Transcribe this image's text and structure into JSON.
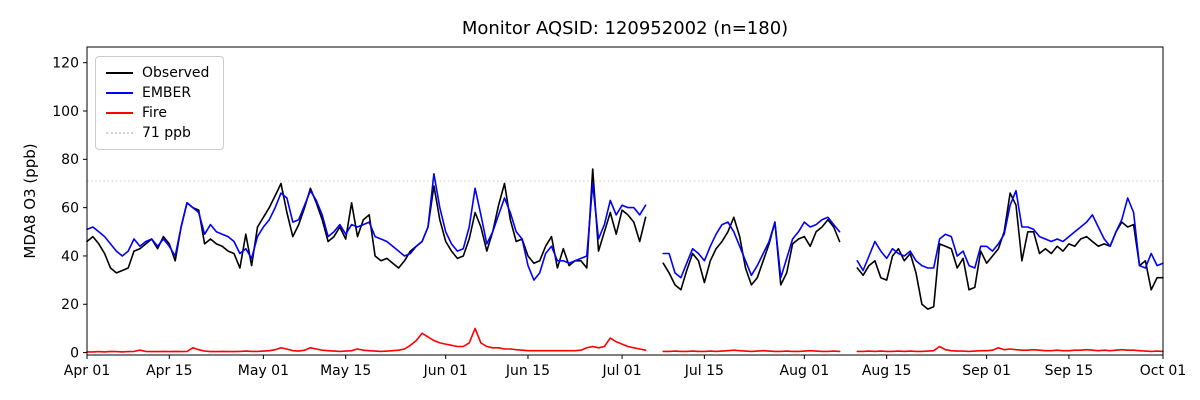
{
  "chart_data": {
    "type": "line",
    "title": "Monitor AQSID: 120952002 (n=180)",
    "ylabel": "MDA8 O3 (ppb)",
    "n_points": 180,
    "x_range_days": [
      0,
      183
    ],
    "x_ticks": [
      {
        "day": 0,
        "label": "Apr 01"
      },
      {
        "day": 14,
        "label": "Apr 15"
      },
      {
        "day": 30,
        "label": "May 01"
      },
      {
        "day": 44,
        "label": "May 15"
      },
      {
        "day": 61,
        "label": "Jun 01"
      },
      {
        "day": 75,
        "label": "Jun 15"
      },
      {
        "day": 91,
        "label": "Jul 01"
      },
      {
        "day": 105,
        "label": "Jul 15"
      },
      {
        "day": 122,
        "label": "Aug 01"
      },
      {
        "day": 136,
        "label": "Aug 15"
      },
      {
        "day": 153,
        "label": "Sep 01"
      },
      {
        "day": 167,
        "label": "Sep 15"
      },
      {
        "day": 183,
        "label": "Oct 01"
      }
    ],
    "y_ticks": [
      0,
      20,
      40,
      60,
      80,
      100,
      120
    ],
    "ylim": [
      -1,
      126.5
    ],
    "grid": false,
    "reference_line": {
      "value": 71,
      "label": "71 ppb",
      "color": "#d3d3d3",
      "style": "dotted"
    },
    "legend": {
      "position": "upper-left",
      "entries": [
        {
          "label": "Observed",
          "color": "#000000",
          "style": "solid"
        },
        {
          "label": "EMBER",
          "color": "#0000ff",
          "style": "solid"
        },
        {
          "label": "Fire",
          "color": "#ff0000",
          "style": "solid"
        },
        {
          "label": "71 ppb",
          "color": "#d3d3d3",
          "style": "dotted"
        }
      ]
    },
    "day_segments": [
      [
        0,
        95
      ],
      [
        98,
        128
      ],
      [
        131,
        183
      ]
    ],
    "series": [
      {
        "name": "Observed",
        "color": "#000000",
        "values": [
          46,
          48,
          45,
          41,
          35,
          33,
          34,
          35,
          42,
          43,
          45,
          47,
          43,
          48,
          45,
          38,
          52,
          62,
          60,
          59,
          45,
          47,
          45,
          44,
          42,
          41,
          35,
          49,
          36,
          52,
          56,
          60,
          65,
          70,
          58,
          48,
          53,
          60,
          68,
          62,
          55,
          46,
          48,
          52,
          47,
          62,
          48,
          55,
          57,
          40,
          38,
          39,
          37,
          35,
          38,
          42,
          44,
          46,
          52,
          69,
          55,
          46,
          42,
          39,
          40,
          47,
          58,
          52,
          42,
          50,
          61,
          70,
          55,
          46,
          47,
          40,
          37,
          38,
          44,
          48,
          35,
          43,
          36,
          38,
          38,
          35,
          76,
          42,
          50,
          58,
          49,
          59,
          57,
          54,
          46,
          56,
          37,
          33,
          28,
          26,
          34,
          41,
          38,
          29,
          38,
          43,
          46,
          50,
          56,
          48,
          35,
          28,
          31,
          38,
          45,
          54,
          28,
          33,
          45,
          47,
          48,
          44,
          50,
          52,
          55,
          52,
          46,
          35,
          32,
          36,
          38,
          31,
          30,
          40,
          43,
          38,
          41,
          33,
          20,
          18,
          19,
          45,
          44,
          43,
          35,
          39,
          26,
          27,
          42,
          37,
          40,
          43,
          50,
          66,
          61,
          38,
          50,
          50,
          41,
          43,
          41,
          44,
          42,
          45,
          44,
          47,
          48,
          46,
          44,
          45,
          44,
          50,
          54,
          52,
          53,
          36,
          38,
          26,
          31,
          31
        ]
      },
      {
        "name": "EMBER",
        "color": "#0000ff",
        "values": [
          51,
          52,
          50,
          48,
          45,
          42,
          40,
          42,
          47,
          44,
          46,
          47,
          44,
          47,
          44,
          40,
          52,
          62,
          60,
          58,
          49,
          53,
          50,
          49,
          48,
          46,
          41,
          43,
          39,
          48,
          52,
          55,
          60,
          66,
          64,
          54,
          55,
          61,
          67,
          63,
          57,
          48,
          50,
          53,
          49,
          53,
          52,
          53,
          54,
          48,
          47,
          46,
          44,
          42,
          40,
          41,
          44,
          46,
          52,
          74,
          60,
          50,
          45,
          42,
          43,
          52,
          68,
          57,
          45,
          50,
          57,
          64,
          58,
          50,
          47,
          36,
          30,
          33,
          41,
          44,
          38,
          38,
          37,
          38,
          39,
          40,
          70,
          47,
          53,
          63,
          57,
          61,
          60,
          60,
          57,
          61,
          41,
          41,
          33,
          31,
          37,
          43,
          41,
          38,
          44,
          49,
          53,
          54,
          50,
          44,
          38,
          32,
          36,
          41,
          46,
          54,
          31,
          39,
          47,
          50,
          54,
          52,
          53,
          55,
          56,
          53,
          50,
          38,
          34,
          40,
          46,
          42,
          39,
          43,
          41,
          40,
          42,
          38,
          36,
          35,
          35,
          47,
          49,
          48,
          40,
          42,
          36,
          35,
          44,
          44,
          42,
          45,
          49,
          61,
          67,
          52,
          52,
          51,
          48,
          47,
          46,
          47,
          46,
          48,
          50,
          52,
          54,
          57,
          52,
          47,
          44,
          50,
          55,
          64,
          58,
          36,
          35,
          41,
          36,
          37
        ]
      },
      {
        "name": "Fire",
        "color": "#ff0000",
        "values": [
          0.3,
          0.3,
          0.4,
          0.3,
          0.5,
          0.4,
          0.3,
          0.4,
          0.5,
          1.0,
          0.5,
          0.4,
          0.4,
          0.5,
          0.4,
          0.5,
          0.4,
          0.5,
          2.0,
          1.2,
          0.6,
          0.4,
          0.4,
          0.5,
          0.4,
          0.4,
          0.5,
          0.6,
          0.5,
          0.5,
          0.6,
          0.8,
          1.2,
          2.0,
          1.5,
          0.8,
          0.6,
          1.0,
          2.0,
          1.5,
          1.0,
          0.8,
          0.6,
          0.5,
          0.6,
          0.8,
          1.5,
          1.0,
          0.8,
          0.6,
          0.5,
          0.6,
          0.8,
          1.0,
          1.5,
          3.0,
          5.0,
          8.0,
          6.5,
          5.0,
          4.0,
          3.5,
          3.0,
          2.5,
          2.5,
          4.0,
          10.0,
          4.0,
          2.5,
          2.0,
          2.0,
          1.5,
          1.5,
          1.2,
          1.0,
          0.8,
          0.8,
          0.8,
          0.8,
          0.8,
          0.8,
          0.8,
          0.8,
          0.8,
          1.0,
          2.0,
          2.5,
          2.0,
          2.5,
          6.0,
          4.5,
          3.5,
          2.5,
          2.0,
          1.5,
          1.0,
          0.5,
          0.5,
          0.6,
          0.5,
          0.5,
          0.6,
          0.5,
          0.5,
          0.6,
          0.5,
          0.6,
          0.8,
          1.0,
          0.8,
          0.6,
          0.5,
          0.6,
          0.8,
          0.6,
          0.5,
          0.5,
          0.6,
          0.5,
          0.5,
          0.6,
          0.8,
          0.6,
          0.5,
          0.5,
          0.6,
          0.5,
          0.5,
          0.5,
          0.6,
          0.5,
          0.6,
          0.5,
          0.5,
          0.6,
          0.5,
          0.6,
          0.5,
          0.5,
          0.6,
          0.8,
          2.5,
          1.2,
          0.8,
          0.6,
          0.6,
          0.5,
          0.6,
          0.8,
          0.8,
          1.0,
          2.0,
          1.2,
          1.5,
          1.2,
          1.0,
          1.0,
          1.2,
          1.0,
          0.8,
          0.8,
          1.0,
          0.8,
          0.8,
          1.0,
          1.0,
          1.2,
          1.0,
          0.8,
          1.0,
          0.8,
          1.0,
          1.2,
          1.0,
          1.0,
          0.8,
          0.6,
          0.5,
          0.6,
          0.5
        ]
      }
    ]
  }
}
